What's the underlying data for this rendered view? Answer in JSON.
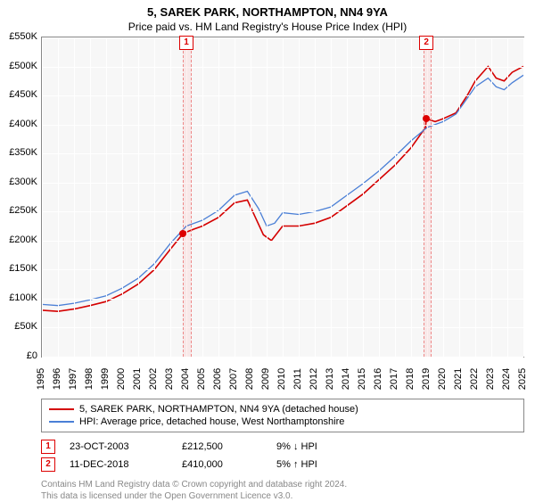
{
  "title": "5, SAREK PARK, NORTHAMPTON, NN4 9YA",
  "subtitle": "Price paid vs. HM Land Registry's House Price Index (HPI)",
  "chart": {
    "type": "line",
    "background_color": "#f7f7f7",
    "grid_color": "#ffffff",
    "border_color": "#888888",
    "ylim": [
      0,
      550000
    ],
    "ytick_step": 50000,
    "yticks": [
      "£0",
      "£50K",
      "£100K",
      "£150K",
      "£200K",
      "£250K",
      "£300K",
      "£350K",
      "£400K",
      "£450K",
      "£500K",
      "£550K"
    ],
    "xlim": [
      1995,
      2025
    ],
    "xtick_step": 1,
    "xticks": [
      "1995",
      "1996",
      "1997",
      "1998",
      "1999",
      "2000",
      "2001",
      "2002",
      "2003",
      "2004",
      "2005",
      "2006",
      "2007",
      "2008",
      "2009",
      "2010",
      "2011",
      "2012",
      "2013",
      "2014",
      "2015",
      "2016",
      "2017",
      "2018",
      "2019",
      "2020",
      "2021",
      "2022",
      "2023",
      "2024",
      "2025"
    ],
    "label_fontsize": 11,
    "shaded_ranges": [
      {
        "x0": 2003.8,
        "x1": 2004.2,
        "marker": "1"
      },
      {
        "x0": 2018.75,
        "x1": 2019.15,
        "marker": "2"
      }
    ],
    "series": [
      {
        "name": "price_paid",
        "label": "5, SAREK PARK, NORTHAMPTON, NN4 9YA (detached house)",
        "color": "#d40000",
        "line_width": 1.6,
        "data": [
          [
            1995,
            80000
          ],
          [
            1996,
            78000
          ],
          [
            1997,
            82000
          ],
          [
            1998,
            88000
          ],
          [
            1999,
            95000
          ],
          [
            2000,
            108000
          ],
          [
            2001,
            125000
          ],
          [
            2002,
            150000
          ],
          [
            2003,
            185000
          ],
          [
            2003.8,
            212500
          ],
          [
            2004.5,
            220000
          ],
          [
            2005,
            225000
          ],
          [
            2006,
            240000
          ],
          [
            2007,
            265000
          ],
          [
            2007.8,
            270000
          ],
          [
            2008.3,
            240000
          ],
          [
            2008.8,
            210000
          ],
          [
            2009.3,
            200000
          ],
          [
            2010,
            225000
          ],
          [
            2011,
            225000
          ],
          [
            2012,
            230000
          ],
          [
            2013,
            240000
          ],
          [
            2014,
            260000
          ],
          [
            2015,
            280000
          ],
          [
            2016,
            305000
          ],
          [
            2017,
            330000
          ],
          [
            2018,
            360000
          ],
          [
            2018.9,
            395000
          ],
          [
            2018.95,
            410000
          ],
          [
            2019.5,
            405000
          ],
          [
            2020,
            410000
          ],
          [
            2020.8,
            420000
          ],
          [
            2021.5,
            450000
          ],
          [
            2022,
            475000
          ],
          [
            2022.8,
            500000
          ],
          [
            2023.3,
            480000
          ],
          [
            2023.8,
            475000
          ],
          [
            2024.3,
            490000
          ],
          [
            2025,
            500000
          ]
        ]
      },
      {
        "name": "hpi",
        "label": "HPI: Average price, detached house, West Northamptonshire",
        "color": "#4a7fd6",
        "line_width": 1.3,
        "data": [
          [
            1995,
            90000
          ],
          [
            1996,
            88000
          ],
          [
            1997,
            92000
          ],
          [
            1998,
            98000
          ],
          [
            1999,
            105000
          ],
          [
            2000,
            118000
          ],
          [
            2001,
            135000
          ],
          [
            2002,
            160000
          ],
          [
            2003,
            195000
          ],
          [
            2004,
            225000
          ],
          [
            2005,
            235000
          ],
          [
            2006,
            252000
          ],
          [
            2007,
            278000
          ],
          [
            2007.8,
            285000
          ],
          [
            2008.5,
            255000
          ],
          [
            2009,
            225000
          ],
          [
            2009.5,
            230000
          ],
          [
            2010,
            248000
          ],
          [
            2011,
            245000
          ],
          [
            2012,
            250000
          ],
          [
            2013,
            258000
          ],
          [
            2014,
            278000
          ],
          [
            2015,
            298000
          ],
          [
            2016,
            320000
          ],
          [
            2017,
            345000
          ],
          [
            2018,
            372000
          ],
          [
            2019,
            395000
          ],
          [
            2020,
            405000
          ],
          [
            2020.8,
            418000
          ],
          [
            2021.5,
            445000
          ],
          [
            2022,
            465000
          ],
          [
            2022.8,
            480000
          ],
          [
            2023.3,
            465000
          ],
          [
            2023.8,
            460000
          ],
          [
            2024.3,
            472000
          ],
          [
            2025,
            485000
          ]
        ]
      }
    ],
    "transaction_points": [
      {
        "x": 2003.8,
        "y": 212500
      },
      {
        "x": 2018.95,
        "y": 410000
      }
    ]
  },
  "legend": {
    "items": [
      {
        "color": "#d40000",
        "label": "5, SAREK PARK, NORTHAMPTON, NN4 9YA (detached house)"
      },
      {
        "color": "#4a7fd6",
        "label": "HPI: Average price, detached house, West Northamptonshire"
      }
    ]
  },
  "transactions": [
    {
      "marker": "1",
      "date": "23-OCT-2003",
      "price": "£212,500",
      "pct": "9% ↓ HPI"
    },
    {
      "marker": "2",
      "date": "11-DEC-2018",
      "price": "£410,000",
      "pct": "5% ↑ HPI"
    }
  ],
  "footer_line1": "Contains HM Land Registry data © Crown copyright and database right 2024.",
  "footer_line2": "This data is licensed under the Open Government Licence v3.0."
}
